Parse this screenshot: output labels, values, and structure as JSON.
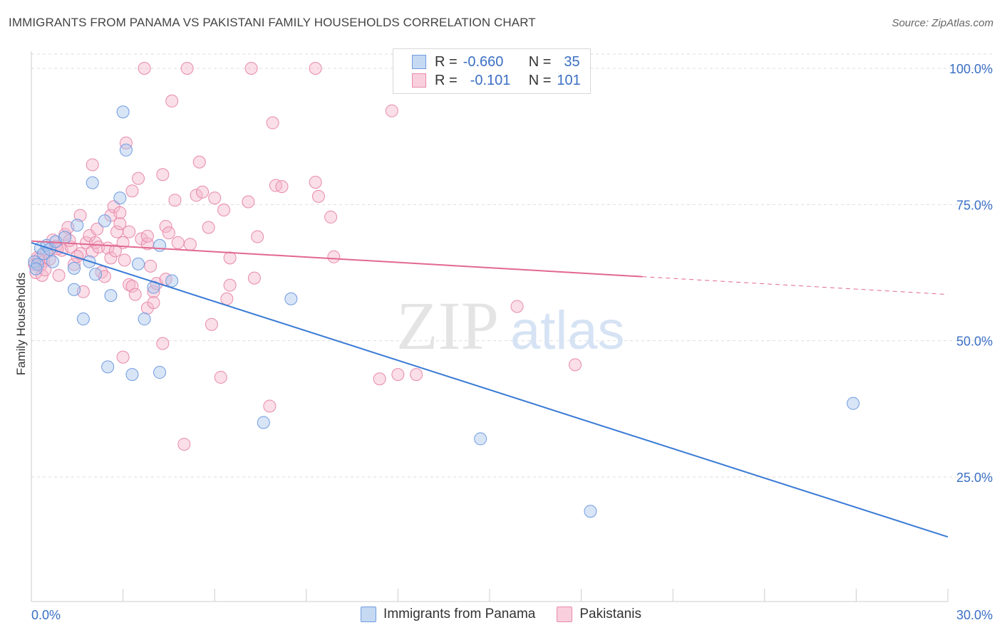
{
  "header": {
    "title": "IMMIGRANTS FROM PANAMA VS PAKISTANI FAMILY HOUSEHOLDS CORRELATION CHART",
    "source": "Source: ZipAtlas.com"
  },
  "legend": {
    "rows": [
      {
        "r_label": "R =",
        "r_value": "-0.660",
        "n_label": "N =",
        "n_value": "35"
      },
      {
        "r_label": "R =",
        "r_value": "-0.101",
        "n_label": "N =",
        "n_value": "101"
      }
    ]
  },
  "watermark": {
    "zip": "ZIP",
    "atlas": "atlas"
  },
  "colors": {
    "blue": "#3a7bd5",
    "blue_fill": "#a8c6ee",
    "pink": "#e2688f",
    "pink_fill": "#f5b6cb",
    "axis_text": "#3a6fc4",
    "grid": "#dddddd"
  },
  "chart_data": {
    "type": "scatter",
    "ylabel": "Family Households",
    "xlim": [
      0,
      30
    ],
    "ylim": [
      5,
      103
    ],
    "x_ticks": [
      "0.0%",
      "30.0%"
    ],
    "y_ticks": [
      {
        "value": 100,
        "label": "100.0%"
      },
      {
        "value": 75,
        "label": "75.0%"
      },
      {
        "value": 50,
        "label": "50.0%"
      },
      {
        "value": 25,
        "label": "25.0%"
      }
    ],
    "series": [
      {
        "name": "Immigrants from Panama",
        "color": "#3a7bd5",
        "trend": {
          "x0": 0,
          "y0": 68.0,
          "x1": 30,
          "y1": 14.0,
          "dash_from": null
        },
        "points": [
          [
            0.1,
            64.5
          ],
          [
            0.2,
            64.0
          ],
          [
            0.3,
            67.0
          ],
          [
            0.4,
            66.0
          ],
          [
            0.5,
            67.5
          ],
          [
            0.6,
            66.8
          ],
          [
            0.7,
            64.5
          ],
          [
            0.8,
            68.2
          ],
          [
            1.1,
            69.0
          ],
          [
            1.4,
            63.3
          ],
          [
            1.4,
            59.4
          ],
          [
            1.5,
            71.2
          ],
          [
            1.7,
            54.0
          ],
          [
            1.9,
            64.5
          ],
          [
            2.0,
            79.0
          ],
          [
            2.1,
            62.2
          ],
          [
            2.4,
            72.0
          ],
          [
            2.5,
            45.2
          ],
          [
            2.6,
            58.3
          ],
          [
            2.9,
            76.2
          ],
          [
            3.0,
            92.0
          ],
          [
            3.1,
            85.0
          ],
          [
            3.3,
            43.8
          ],
          [
            3.5,
            64.1
          ],
          [
            3.7,
            54.0
          ],
          [
            4.0,
            59.8
          ],
          [
            4.2,
            67.5
          ],
          [
            4.2,
            44.2
          ],
          [
            4.6,
            61.0
          ],
          [
            7.6,
            35.0
          ],
          [
            8.5,
            57.7
          ],
          [
            14.7,
            32.0
          ],
          [
            18.3,
            18.7
          ],
          [
            26.9,
            38.5
          ],
          [
            0.15,
            63.2
          ]
        ]
      },
      {
        "name": "Pakistanis",
        "color": "#e2688f",
        "trend": {
          "x0": 0,
          "y0": 68.3,
          "x1": 30,
          "y1": 58.5,
          "dash_from": 20
        },
        "points": [
          [
            0.1,
            64.0
          ],
          [
            0.15,
            62.5
          ],
          [
            0.2,
            65.3
          ],
          [
            0.3,
            63.8
          ],
          [
            0.35,
            62.0
          ],
          [
            0.4,
            64.6
          ],
          [
            0.5,
            66.2
          ],
          [
            0.6,
            65.0
          ],
          [
            0.7,
            68.5
          ],
          [
            0.8,
            67.3
          ],
          [
            0.9,
            62.0
          ],
          [
            1.0,
            66.6
          ],
          [
            1.1,
            69.5
          ],
          [
            1.2,
            70.8
          ],
          [
            1.3,
            67.2
          ],
          [
            1.4,
            64.0
          ],
          [
            1.6,
            73.0
          ],
          [
            1.6,
            66.0
          ],
          [
            1.7,
            59.0
          ],
          [
            1.8,
            68.0
          ],
          [
            1.9,
            69.3
          ],
          [
            2.0,
            66.4
          ],
          [
            2.0,
            82.3
          ],
          [
            2.1,
            68.0
          ],
          [
            2.2,
            67.2
          ],
          [
            2.3,
            62.6
          ],
          [
            2.4,
            61.8
          ],
          [
            2.5,
            67.0
          ],
          [
            2.6,
            65.2
          ],
          [
            2.6,
            73.0
          ],
          [
            2.7,
            74.6
          ],
          [
            2.8,
            70.0
          ],
          [
            2.9,
            71.5
          ],
          [
            2.9,
            73.5
          ],
          [
            3.0,
            68.0
          ],
          [
            3.0,
            47.0
          ],
          [
            3.1,
            86.3
          ],
          [
            3.2,
            70.0
          ],
          [
            3.2,
            60.3
          ],
          [
            3.3,
            77.5
          ],
          [
            3.3,
            60.0
          ],
          [
            3.4,
            58.5
          ],
          [
            3.5,
            79.8
          ],
          [
            3.6,
            68.7
          ],
          [
            3.7,
            100.0
          ],
          [
            3.8,
            67.8
          ],
          [
            3.8,
            56.0
          ],
          [
            3.8,
            69.2
          ],
          [
            3.9,
            63.7
          ],
          [
            4.0,
            59.0
          ],
          [
            4.0,
            57.0
          ],
          [
            4.1,
            60.5
          ],
          [
            4.3,
            80.5
          ],
          [
            4.3,
            49.5
          ],
          [
            4.4,
            71.0
          ],
          [
            4.4,
            61.3
          ],
          [
            4.6,
            94.0
          ],
          [
            4.7,
            75.8
          ],
          [
            4.8,
            68.0
          ],
          [
            5.0,
            31.0
          ],
          [
            5.1,
            100.0
          ],
          [
            5.2,
            67.7
          ],
          [
            5.4,
            76.7
          ],
          [
            5.5,
            82.8
          ],
          [
            5.6,
            77.3
          ],
          [
            5.8,
            70.8
          ],
          [
            5.9,
            53.0
          ],
          [
            6.0,
            76.2
          ],
          [
            6.2,
            43.3
          ],
          [
            6.3,
            74.0
          ],
          [
            6.4,
            57.7
          ],
          [
            6.5,
            60.2
          ],
          [
            6.5,
            65.2
          ],
          [
            7.1,
            75.5
          ],
          [
            7.2,
            100.0
          ],
          [
            7.4,
            69.1
          ],
          [
            7.3,
            61.5
          ],
          [
            7.8,
            38.0
          ],
          [
            7.9,
            90.0
          ],
          [
            8.0,
            78.5
          ],
          [
            8.2,
            78.3
          ],
          [
            9.3,
            100.0
          ],
          [
            9.3,
            79.1
          ],
          [
            9.4,
            76.5
          ],
          [
            9.8,
            72.7
          ],
          [
            9.9,
            65.4
          ],
          [
            11.4,
            43.0
          ],
          [
            11.8,
            92.2
          ],
          [
            12.0,
            43.8
          ],
          [
            12.6,
            43.8
          ],
          [
            15.9,
            56.3
          ],
          [
            17.8,
            45.6
          ],
          [
            0.25,
            65.0
          ],
          [
            0.45,
            63.0
          ],
          [
            1.5,
            65.5
          ],
          [
            2.15,
            70.5
          ],
          [
            2.75,
            66.5
          ],
          [
            3.05,
            64.8
          ],
          [
            1.25,
            68.4
          ],
          [
            0.85,
            66.9
          ],
          [
            4.5,
            69.8
          ]
        ]
      }
    ]
  }
}
